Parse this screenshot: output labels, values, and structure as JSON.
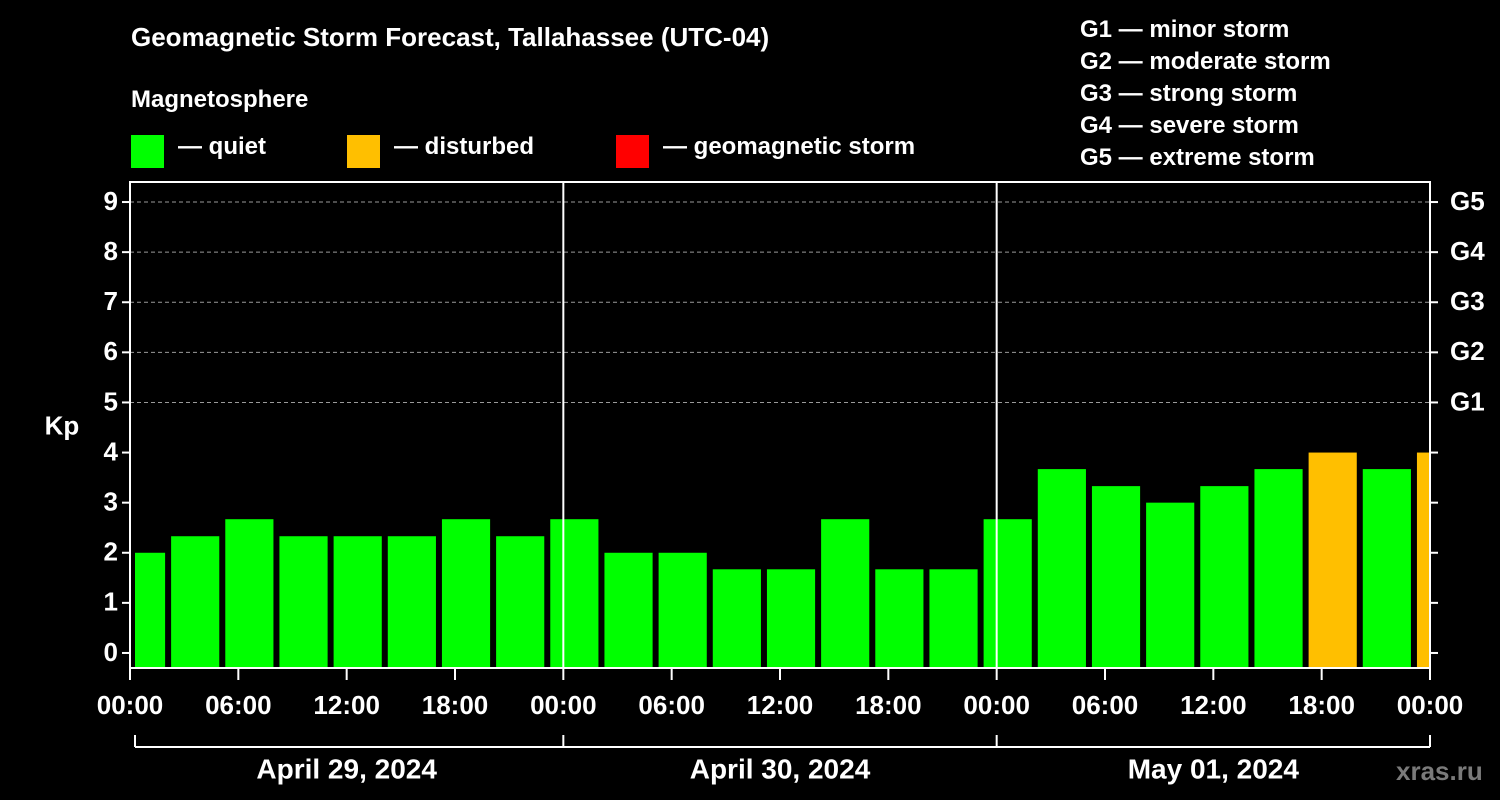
{
  "colors": {
    "quiet": "#00ff00",
    "disturbed": "#ffbf00",
    "storm": "#ff0000",
    "background": "#000000",
    "foreground": "#ffffff"
  },
  "legend": {
    "title": "Magnetosphere",
    "items": [
      {
        "key": "quiet",
        "label": "— quiet",
        "color": "#00ff00"
      },
      {
        "key": "disturbed",
        "label": "— disturbed",
        "color": "#ffbf00"
      },
      {
        "key": "storm",
        "label": "— geomagnetic storm",
        "color": "#ff0000"
      }
    ]
  },
  "storm_scale": [
    "G1 — minor storm",
    "G2 — moderate storm",
    "G3 — strong storm",
    "G4 — severe storm",
    "G5 — extreme storm"
  ],
  "watermark": "xras.ru",
  "chart_data": {
    "type": "bar",
    "title": "Geomagnetic Storm Forecast, Tallahassee (UTC-04)",
    "ylabel": "Kp",
    "ylim": [
      -0.3,
      9.4
    ],
    "yticks": [
      "0",
      "1",
      "2",
      "3",
      "4",
      "5",
      "6",
      "7",
      "8",
      "9"
    ],
    "right_ticks": [
      {
        "kp": 5,
        "label": "G1"
      },
      {
        "kp": 6,
        "label": "G2"
      },
      {
        "kp": 7,
        "label": "G3"
      },
      {
        "kp": 8,
        "label": "G4"
      },
      {
        "kp": 9,
        "label": "G5"
      }
    ],
    "grid_from_kp": 5,
    "xlim_hours": [
      0,
      72
    ],
    "x_ticks": [
      "00:00",
      "06:00",
      "12:00",
      "18:00",
      "00:00",
      "06:00",
      "12:00",
      "18:00",
      "00:00",
      "06:00",
      "12:00",
      "18:00",
      "00:00"
    ],
    "dates": [
      "April 29, 2024",
      "April 30, 2024",
      "May 01, 2024"
    ],
    "bars": [
      {
        "start": 0,
        "end": 2,
        "kp": 2.0,
        "level": "quiet"
      },
      {
        "start": 2,
        "end": 5,
        "kp": 2.33,
        "level": "quiet"
      },
      {
        "start": 5,
        "end": 8,
        "kp": 2.67,
        "level": "quiet"
      },
      {
        "start": 8,
        "end": 11,
        "kp": 2.33,
        "level": "quiet"
      },
      {
        "start": 11,
        "end": 14,
        "kp": 2.33,
        "level": "quiet"
      },
      {
        "start": 14,
        "end": 17,
        "kp": 2.33,
        "level": "quiet"
      },
      {
        "start": 17,
        "end": 20,
        "kp": 2.67,
        "level": "quiet"
      },
      {
        "start": 20,
        "end": 23,
        "kp": 2.33,
        "level": "quiet"
      },
      {
        "start": 23,
        "end": 26,
        "kp": 2.67,
        "level": "quiet"
      },
      {
        "start": 26,
        "end": 29,
        "kp": 2.0,
        "level": "quiet"
      },
      {
        "start": 29,
        "end": 32,
        "kp": 2.0,
        "level": "quiet"
      },
      {
        "start": 32,
        "end": 35,
        "kp": 1.67,
        "level": "quiet"
      },
      {
        "start": 35,
        "end": 38,
        "kp": 1.67,
        "level": "quiet"
      },
      {
        "start": 38,
        "end": 41,
        "kp": 2.67,
        "level": "quiet"
      },
      {
        "start": 41,
        "end": 44,
        "kp": 1.67,
        "level": "quiet"
      },
      {
        "start": 44,
        "end": 47,
        "kp": 1.67,
        "level": "quiet"
      },
      {
        "start": 47,
        "end": 50,
        "kp": 2.67,
        "level": "quiet"
      },
      {
        "start": 50,
        "end": 53,
        "kp": 3.67,
        "level": "quiet"
      },
      {
        "start": 53,
        "end": 56,
        "kp": 3.33,
        "level": "quiet"
      },
      {
        "start": 56,
        "end": 59,
        "kp": 3.0,
        "level": "quiet"
      },
      {
        "start": 59,
        "end": 62,
        "kp": 3.33,
        "level": "quiet"
      },
      {
        "start": 62,
        "end": 65,
        "kp": 3.67,
        "level": "quiet"
      },
      {
        "start": 65,
        "end": 68,
        "kp": 4.0,
        "level": "disturbed"
      },
      {
        "start": 68,
        "end": 71,
        "kp": 3.67,
        "level": "quiet"
      },
      {
        "start": 71,
        "end": 72,
        "kp": 4.0,
        "level": "disturbed"
      }
    ]
  }
}
